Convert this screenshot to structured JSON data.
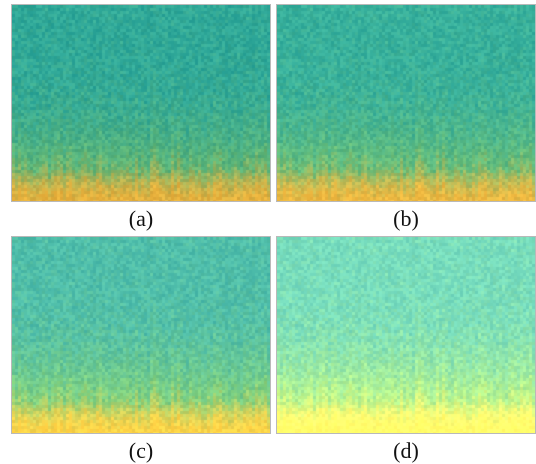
{
  "panels": [
    {
      "id": "a",
      "caption": "(a)",
      "palette": {
        "top": "#2fa899",
        "mid": "#5fb677",
        "bottom": "#e9b23d"
      },
      "brightness": 0.0
    },
    {
      "id": "b",
      "caption": "(b)",
      "palette": {
        "top": "#2fa899",
        "mid": "#5fb677",
        "bottom": "#e9b23d"
      },
      "brightness": 0.03
    },
    {
      "id": "c",
      "caption": "(c)",
      "palette": {
        "top": "#3aa9a1",
        "mid": "#6cbd76",
        "bottom": "#efc13d"
      },
      "brightness": 0.08
    },
    {
      "id": "d",
      "caption": "(d)",
      "palette": {
        "top": "#4db3aa",
        "mid": "#8fcc7b",
        "bottom": "#f1da55"
      },
      "brightness": 0.16
    }
  ]
}
